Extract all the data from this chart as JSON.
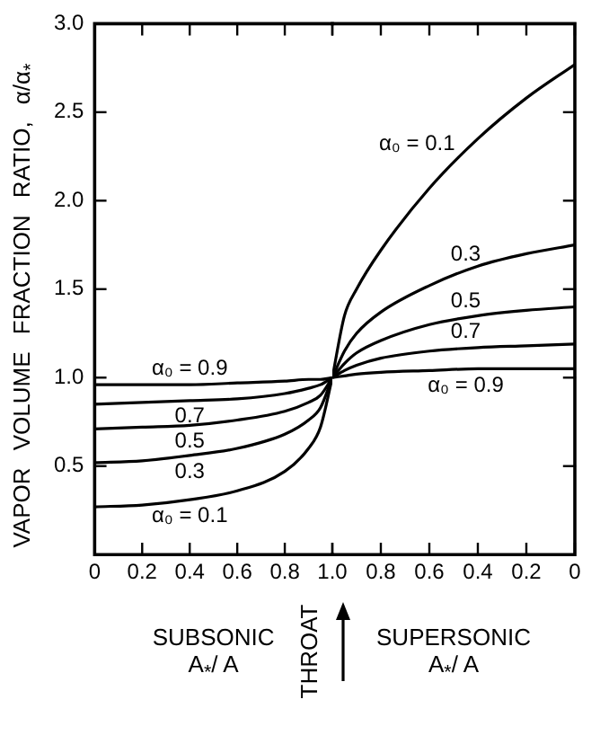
{
  "chart_data": [
    {
      "type": "line",
      "xlabel": "SUBSONIC A$_{*}$/ A",
      "ylabel": "VAPOR VOLUME FRACTION RATIO, α/α$_{*}$",
      "x": [
        0,
        0.2,
        0.4,
        0.6,
        0.8,
        0.9,
        0.95,
        1.0
      ],
      "series": [
        {
          "name": "α₀ = 0.1",
          "color": "#000000",
          "values": [
            0.27,
            0.28,
            0.31,
            0.36,
            0.47,
            0.6,
            0.72,
            1.0
          ]
        },
        {
          "name": "0.3",
          "color": "#000000",
          "values": [
            0.52,
            0.53,
            0.56,
            0.6,
            0.68,
            0.76,
            0.83,
            1.0
          ]
        },
        {
          "name": "0.5",
          "color": "#000000",
          "values": [
            0.71,
            0.72,
            0.73,
            0.76,
            0.81,
            0.86,
            0.9,
            1.0
          ]
        },
        {
          "name": "0.7",
          "color": "#000000",
          "values": [
            0.85,
            0.86,
            0.87,
            0.88,
            0.91,
            0.94,
            0.96,
            1.0
          ]
        },
        {
          "name": "α₀ = 0.9",
          "color": "#000000",
          "values": [
            0.96,
            0.96,
            0.96,
            0.97,
            0.98,
            0.99,
            0.99,
            1.0
          ]
        }
      ],
      "xlim": [
        0,
        1
      ],
      "xticks": [
        0,
        0.2,
        0.4,
        0.6,
        0.8,
        {
          "value": 1.0,
          "label": "1.0"
        }
      ],
      "ylim": [
        0,
        3
      ],
      "yticks": [
        {
          "value": 0.5,
          "label": "0.5"
        },
        {
          "value": 1,
          "label": "1.0"
        },
        {
          "value": 1.5,
          "label": "1.5"
        },
        {
          "value": 2,
          "label": "2.0"
        },
        {
          "value": 2.5,
          "label": "2.5"
        },
        {
          "value": 3,
          "label": "3.0"
        }
      ],
      "grid": false,
      "legend": false,
      "marker": "none",
      "line_style": "solid",
      "annotations": [
        "THROAT"
      ]
    },
    {
      "type": "line",
      "xlabel": "SUPERSONIC A$_{*}$/ A",
      "x": [
        1.0,
        0.95,
        0.9,
        0.8,
        0.6,
        0.4,
        0.2,
        0
      ],
      "series": [
        {
          "name": "α₀ = 0.1",
          "color": "#000000",
          "values": [
            1.0,
            1.35,
            1.5,
            1.72,
            2.07,
            2.35,
            2.58,
            2.77
          ]
        },
        {
          "name": "0.3",
          "color": "#000000",
          "values": [
            1.0,
            1.15,
            1.25,
            1.37,
            1.52,
            1.63,
            1.7,
            1.75
          ]
        },
        {
          "name": "0.5",
          "color": "#000000",
          "values": [
            1.0,
            1.08,
            1.14,
            1.21,
            1.3,
            1.35,
            1.38,
            1.4
          ]
        },
        {
          "name": "0.7",
          "color": "#000000",
          "values": [
            1.0,
            1.04,
            1.07,
            1.11,
            1.15,
            1.17,
            1.18,
            1.19
          ]
        },
        {
          "name": "α₀ = 0.9",
          "color": "#000000",
          "values": [
            1.0,
            1.01,
            1.02,
            1.03,
            1.04,
            1.05,
            1.05,
            1.05
          ]
        }
      ],
      "xlim": [
        1,
        0
      ],
      "xticks": [
        {
          "value": 1.0,
          "label": null
        },
        0.8,
        0.6,
        0.4,
        0.2,
        0
      ],
      "ylim": [
        0,
        3
      ],
      "yticks": [
        {
          "value": 0.5,
          "label": null
        },
        {
          "value": 1,
          "label": null
        },
        {
          "value": 1.5,
          "label": null
        },
        {
          "value": 2,
          "label": null
        },
        {
          "value": 2.5,
          "label": null
        },
        {
          "value": 3,
          "label": null
        }
      ],
      "tick_labels": "x",
      "grid": false,
      "legend": false,
      "marker": "none",
      "line_style": "solid"
    }
  ]
}
